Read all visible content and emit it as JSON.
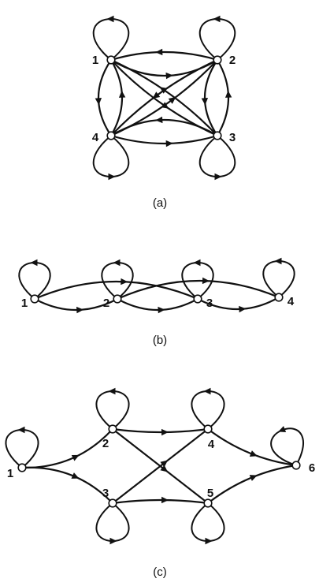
{
  "panels": [
    {
      "id": "a",
      "caption": "(a)",
      "nodes": [
        {
          "id": "1",
          "label": "1"
        },
        {
          "id": "2",
          "label": "2"
        },
        {
          "id": "3",
          "label": "3"
        },
        {
          "id": "4",
          "label": "4"
        }
      ],
      "edges": [
        {
          "from": "1",
          "to": "2"
        },
        {
          "from": "2",
          "to": "1"
        },
        {
          "from": "1",
          "to": "4"
        },
        {
          "from": "4",
          "to": "1"
        },
        {
          "from": "2",
          "to": "3"
        },
        {
          "from": "3",
          "to": "2"
        },
        {
          "from": "4",
          "to": "3"
        },
        {
          "from": "3",
          "to": "4"
        },
        {
          "from": "1",
          "to": "3"
        },
        {
          "from": "3",
          "to": "1"
        },
        {
          "from": "2",
          "to": "4"
        },
        {
          "from": "4",
          "to": "2"
        }
      ],
      "loops": [
        "1",
        "2",
        "3",
        "4"
      ]
    },
    {
      "id": "b",
      "caption": "(b)",
      "nodes": [
        {
          "id": "1",
          "label": "1"
        },
        {
          "id": "2",
          "label": "2"
        },
        {
          "id": "3",
          "label": "3"
        },
        {
          "id": "4",
          "label": "4"
        }
      ],
      "edges": [
        {
          "from": "1",
          "to": "2"
        },
        {
          "from": "1",
          "to": "3"
        },
        {
          "from": "2",
          "to": "3"
        },
        {
          "from": "2",
          "to": "4"
        },
        {
          "from": "3",
          "to": "4"
        }
      ],
      "loops": [
        "1",
        "2",
        "3",
        "4"
      ]
    },
    {
      "id": "c",
      "caption": "(c)",
      "nodes": [
        {
          "id": "1",
          "label": "1"
        },
        {
          "id": "2",
          "label": "2"
        },
        {
          "id": "3",
          "label": "3"
        },
        {
          "id": "4",
          "label": "4"
        },
        {
          "id": "5",
          "label": "5"
        },
        {
          "id": "6",
          "label": "6"
        }
      ],
      "edges": [
        {
          "from": "1",
          "to": "2"
        },
        {
          "from": "1",
          "to": "3"
        },
        {
          "from": "2",
          "to": "4"
        },
        {
          "from": "2",
          "to": "5"
        },
        {
          "from": "3",
          "to": "4"
        },
        {
          "from": "3",
          "to": "5"
        },
        {
          "from": "4",
          "to": "6"
        },
        {
          "from": "5",
          "to": "6"
        }
      ],
      "loops": [
        "1",
        "2",
        "3",
        "4",
        "5",
        "6"
      ]
    }
  ]
}
